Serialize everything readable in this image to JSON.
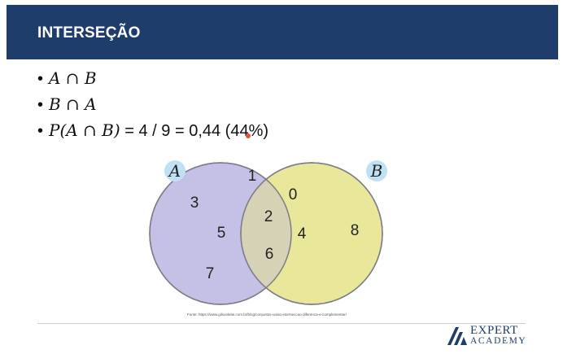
{
  "header": {
    "title": "INTERSEÇÃO"
  },
  "bullets": [
    {
      "symbol": "•",
      "math": "A ∩ B",
      "rest": ""
    },
    {
      "symbol": "•",
      "math": "B ∩ A",
      "rest": ""
    },
    {
      "symbol": "•",
      "math": "P(A ∩ B)",
      "rest": " = 4 / 9 = 0,44 (44%)"
    }
  ],
  "venn": {
    "set_a": {
      "label": "A",
      "color": "#c5c0e6",
      "only": [
        "1",
        "3",
        "5",
        "7"
      ]
    },
    "set_b": {
      "label": "B",
      "color": "#e9e89a",
      "only": [
        "8"
      ]
    },
    "intersection": {
      "color": "#d5d2b6",
      "values": [
        "0",
        "2",
        "4",
        "6"
      ]
    },
    "label_badge_color": "#bfe1f3"
  },
  "source": "Fonte: https://www.gilsonleite.com.br/blog/conjuntos-uniao-interseccao-diferenca-e-complementar/",
  "logo": {
    "line1": "EXPERT",
    "line2": "ACADEMY",
    "color": "#1e3d6b"
  }
}
